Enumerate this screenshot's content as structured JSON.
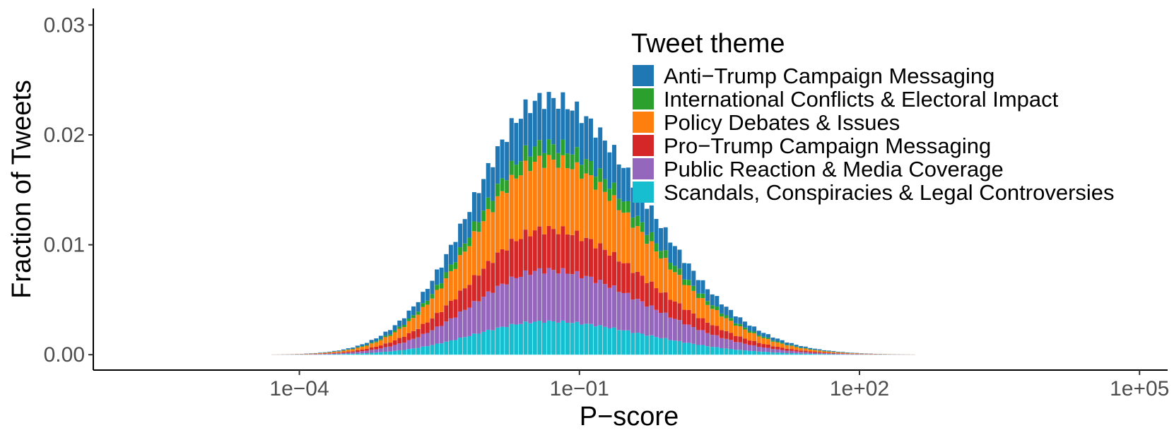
{
  "chart_data": {
    "type": "bar",
    "stacked": true,
    "x_scale": "log10",
    "xlabel": "P−score",
    "ylabel": "Fraction of Tweets",
    "xlim": [
      6.2e-07,
      200000
    ],
    "ylim": [
      -0.0014,
      0.0315
    ],
    "x_ticks": [
      0.0001,
      0.1,
      100,
      100000
    ],
    "x_tick_labels": [
      "1e−04",
      "1e−01",
      "1e+02",
      "1e+05"
    ],
    "y_ticks": [
      0,
      0.01,
      0.02,
      0.03
    ],
    "y_tick_labels": [
      "0.00",
      "0.01",
      "0.02",
      "0.03"
    ],
    "grid": false,
    "legend": {
      "title": "Tweet theme",
      "position": "top-right inside"
    },
    "series": [
      {
        "name": "Scandals, Conspiracies & Legal Controversies",
        "color": "#17becf"
      },
      {
        "name": "Public Reaction & Media Coverage",
        "color": "#9467bd"
      },
      {
        "name": "Pro−Trump Campaign Messaging",
        "color": "#d62728"
      },
      {
        "name": "Policy Debates & Issues",
        "color": "#ff7f0e"
      },
      {
        "name": "International Conflicts & Electoral Impact",
        "color": "#2ca02c"
      },
      {
        "name": "Anti−Trump Campaign Messaging",
        "color": "#1f77b4"
      }
    ],
    "legend_order": [
      5,
      4,
      3,
      2,
      1,
      0
    ],
    "distribution": {
      "description_ignored": false,
      "bin_width_log10": 0.05,
      "x_min_log10": -5.6,
      "x_max_log10": 4.4,
      "peak_log10": -1.35,
      "peak_total": 0.0233,
      "sigma_left_log10": 0.78,
      "sigma_right_log10": 1.05,
      "shares": [
        0.13,
        0.2,
        0.16,
        0.27,
        0.06,
        0.18
      ]
    }
  }
}
